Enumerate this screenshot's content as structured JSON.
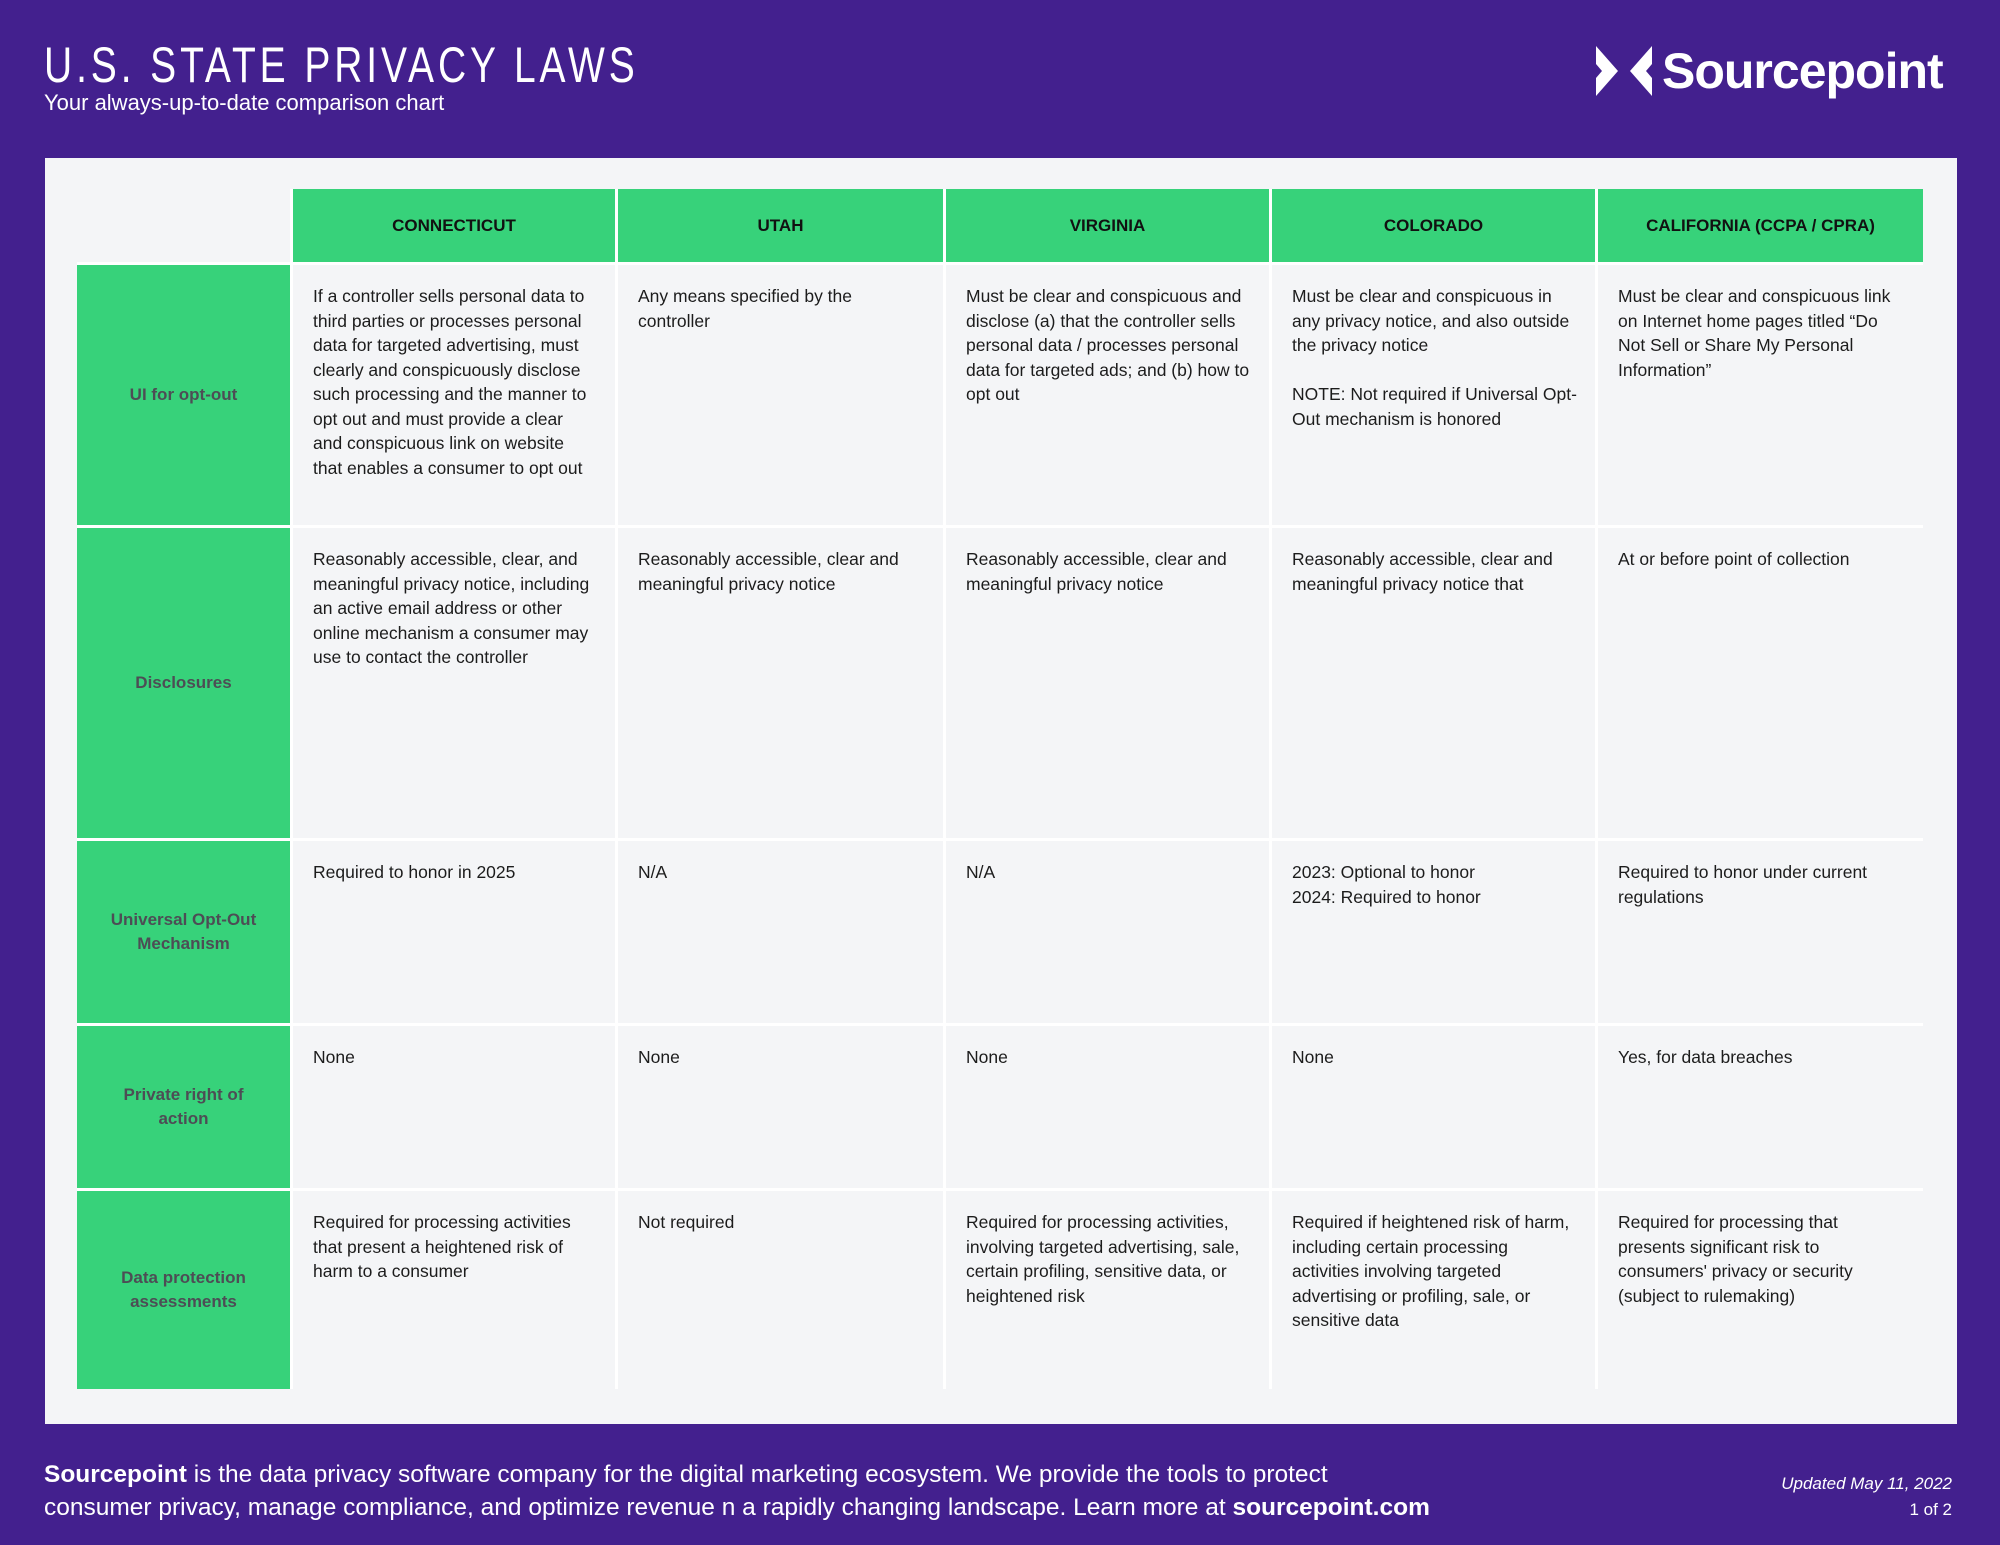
{
  "header": {
    "title": "U.S. STATE PRIVACY LAWS",
    "subtitle": "Your always-up-to-date comparison chart",
    "logo_text": "Sourcepoint"
  },
  "colors": {
    "background": "#43208e",
    "accent": "#37d27a",
    "card": "#f4f5f7"
  },
  "table": {
    "columns": [
      "CONNECTICUT",
      "UTAH",
      "VIRGINIA",
      "COLORADO",
      "CALIFORNIA (CCPA / CPRA)"
    ],
    "rows": [
      {
        "label": "UI for opt-out",
        "cells": [
          "If a controller sells personal data to third parties or processes personal data for targeted advertising, must clearly and conspicuously disclose such processing and the manner to opt out and must provide a clear and conspicuous link on website that enables a consumer to opt out",
          "Any means specified by the controller",
          "Must be clear and conspicuous and disclose (a) that the controller sells personal data / processes personal data for targeted ads; and (b) how to opt out",
          "Must be clear and conspicuous in any privacy notice, and also outside the privacy notice\n\nNOTE: Not required if Universal Opt-Out mechanism is honored",
          "Must be clear and conspicuous link on Internet home pages titled “Do Not Sell or Share My Personal Information”"
        ]
      },
      {
        "label": "Disclosures",
        "cells": [
          "Reasonably accessible, clear, and meaningful privacy notice, including an active email address or other online mechanism a consumer may use to contact the controller",
          "Reasonably accessible, clear and meaningful privacy notice",
          "Reasonably accessible, clear and meaningful privacy notice",
          "Reasonably accessible, clear and meaningful privacy notice that",
          "At or before point of collection"
        ]
      },
      {
        "label": "Universal Opt-Out Mechanism",
        "cells": [
          "Required to honor in 2025",
          "N/A",
          "N/A",
          "2023: Optional to honor\n2024: Required to honor",
          "Required to honor under current regulations"
        ]
      },
      {
        "label": "Private right of action",
        "cells": [
          "None",
          "None",
          "None",
          "None",
          "Yes, for data breaches"
        ]
      },
      {
        "label": "Data protection assessments",
        "cells": [
          "Required for processing activities that present a heightened risk of harm to a consumer",
          "Not required",
          "Required for processing activities, involving targeted advertising, sale, certain profiling, sensitive data, or heightened risk",
          "Required if heightened risk of harm, including certain processing activities involving targeted advertising or profiling, sale, or sensitive data",
          "Required for processing that presents significant risk to consumers' privacy or security (subject to rulemaking)"
        ]
      }
    ]
  },
  "footer": {
    "brand": "Sourcepoint",
    "text1": " is the data privacy software company for the digital marketing ecosystem. We provide the tools to protect",
    "text2": "consumer privacy, manage compliance, and optimize revenue n a rapidly changing landscape.  Learn more at ",
    "link": "sourcepoint.com",
    "updated": "Updated May 11, 2022",
    "page": "1 of 2"
  }
}
